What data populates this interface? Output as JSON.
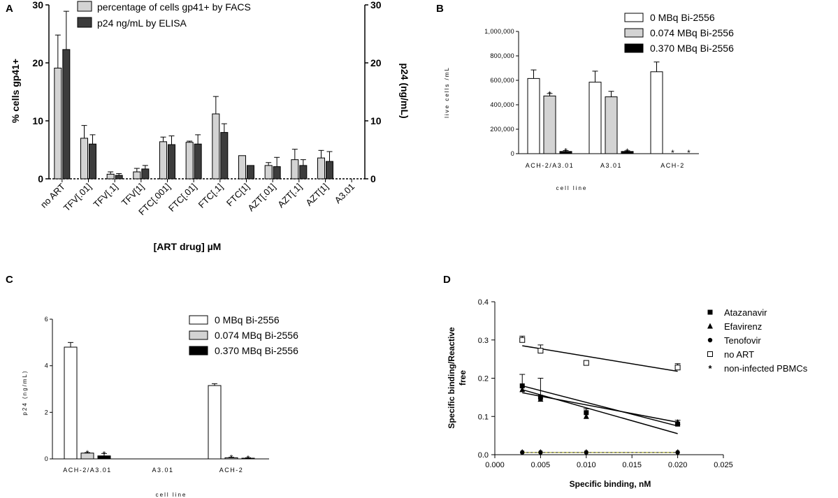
{
  "panels": {
    "A": {
      "letter": "A",
      "xlabel": "[ART drug] µM",
      "ylabel_left": "% cells gp41+",
      "ylabel_right": "p24 (ng/mL)"
    },
    "B": {
      "letter": "B",
      "xlabel": "cell line",
      "ylabel": "live cells /mL"
    },
    "C": {
      "letter": "C",
      "xlabel": "cell line",
      "ylabel": "p24 (ng/mL)"
    },
    "D": {
      "letter": "D",
      "xlabel": "Specific binding, nM",
      "ylabel_line1": "Specific binding/Reactive",
      "ylabel_line2": "free"
    }
  },
  "chart_data": [
    {
      "id": "A",
      "type": "bar",
      "categories": [
        "no ART",
        "TFV[.01]",
        "TFV[.1]",
        "TFV[1]",
        "FTC[.001]",
        "FTC[.01]",
        "FTC[.1]",
        "FTC[1]",
        "AZT[.01]",
        "AZT[.1]",
        "AZT[1]",
        "A3.01"
      ],
      "series": [
        {
          "name": "percentage of cells gp41+ by FACS",
          "color": "#d3d3d3",
          "axis": "left",
          "values": [
            19.1,
            7.0,
            0.8,
            1.2,
            6.4,
            6.3,
            11.2,
            4.0,
            2.3,
            3.3,
            3.6,
            0
          ],
          "errors": [
            5.7,
            2.2,
            0.4,
            0.6,
            0.8,
            0.2,
            3.0,
            0,
            0.5,
            1.8,
            1.3,
            0
          ]
        },
        {
          "name": "p24 ng/mL by ELISA",
          "color": "#3c3c3c",
          "axis": "right",
          "values": [
            22.3,
            6.0,
            0.6,
            1.7,
            5.9,
            6.0,
            8.0,
            2.3,
            2.1,
            2.3,
            3.0,
            0
          ],
          "errors": [
            6.6,
            1.6,
            0.3,
            0.6,
            1.5,
            1.6,
            1.5,
            0,
            1.6,
            1.0,
            1.7,
            0
          ]
        }
      ],
      "ylim_left": [
        0,
        30
      ],
      "ylim_right": [
        0,
        30
      ],
      "yticks_left": [
        "0",
        "10",
        "20",
        "30"
      ],
      "yticks_right": [
        "0",
        "10",
        "20",
        "30"
      ],
      "ylabel_left": "% cells gp41+",
      "ylabel_right": "p24 (ng/mL)",
      "xlabel": "[ART drug] µM",
      "legend_position": "top"
    },
    {
      "id": "B",
      "type": "bar",
      "categories": [
        "ACH-2/A3.01",
        "A3.01",
        "ACH-2"
      ],
      "series": [
        {
          "name": "0 MBq Bi-2556",
          "color": "#ffffff",
          "values": [
            615000,
            585000,
            670000
          ],
          "errors": [
            70000,
            90000,
            80000
          ]
        },
        {
          "name": "0.074 MBq Bi-2556",
          "color": "#d3d3d3",
          "values": [
            472000,
            465000,
            0
          ],
          "errors": [
            20000,
            45000,
            0
          ]
        },
        {
          "name": "0.370 MBq Bi-2556",
          "color": "#000000",
          "values": [
            18000,
            18000,
            0
          ],
          "errors": [
            8000,
            6000,
            0
          ]
        }
      ],
      "annotations": [
        {
          "category": "ACH-2/A3.01",
          "series": "0.074 MBq Bi-2556",
          "text": "*"
        },
        {
          "category": "ACH-2/A3.01",
          "series": "0.370 MBq Bi-2556",
          "text": "*"
        },
        {
          "category": "A3.01",
          "series": "0.370 MBq Bi-2556",
          "text": "*"
        },
        {
          "category": "ACH-2",
          "series": "0.074 MBq Bi-2556",
          "text": "*"
        },
        {
          "category": "ACH-2",
          "series": "0.370 MBq Bi-2556",
          "text": "*"
        }
      ],
      "ylim": [
        0,
        1000000
      ],
      "yticks": [
        "0",
        "200,000",
        "400,000",
        "600,000",
        "800,000",
        "1,000,000"
      ],
      "ylabel": "live cells /mL",
      "xlabel": "cell line",
      "legend_position": "top-right"
    },
    {
      "id": "C",
      "type": "bar",
      "categories": [
        "ACH-2/A3.01",
        "A3.01",
        "ACH-2"
      ],
      "series": [
        {
          "name": "0 MBq Bi-2556",
          "color": "#ffffff",
          "values": [
            4.8,
            0,
            3.15
          ],
          "errors": [
            0.2,
            0,
            0.08
          ]
        },
        {
          "name": "0.074 MBq Bi-2556",
          "color": "#d3d3d3",
          "values": [
            0.25,
            0,
            0.05
          ],
          "errors": [
            0.02,
            0,
            0.02
          ]
        },
        {
          "name": "0.370 MBq Bi-2556",
          "color": "#000000",
          "values": [
            0.13,
            0,
            0.03
          ],
          "errors": [
            0.1,
            0,
            0.02
          ]
        }
      ],
      "annotations": [
        {
          "category": "ACH-2/A3.01",
          "series": "0.074 MBq Bi-2556",
          "text": "*"
        },
        {
          "category": "ACH-2/A3.01",
          "series": "0.370 MBq Bi-2556",
          "text": "*"
        },
        {
          "category": "ACH-2",
          "series": "0.074 MBq Bi-2556",
          "text": "*"
        },
        {
          "category": "ACH-2",
          "series": "0.370 MBq Bi-2556",
          "text": "*"
        }
      ],
      "ylim": [
        0,
        6
      ],
      "yticks": [
        "0",
        "2",
        "4",
        "6"
      ],
      "ylabel": "p24 (ng/mL)",
      "xlabel": "cell line",
      "legend_position": "top-right"
    },
    {
      "id": "D",
      "type": "scatter",
      "series": [
        {
          "name": "Atazanavir",
          "marker": "square-filled",
          "points": [
            [
              0.003,
              0.18
            ],
            [
              0.005,
              0.15
            ],
            [
              0.01,
              0.11
            ],
            [
              0.02,
              0.08
            ]
          ],
          "errors": [
            0.03,
            0.05,
            0.01,
            0.01
          ],
          "fit": [
            [
              0.003,
              0.18
            ],
            [
              0.02,
              0.075
            ]
          ]
        },
        {
          "name": "Efavirenz",
          "marker": "triangle-filled",
          "points": [
            [
              0.003,
              0.17
            ],
            [
              0.005,
              0.145
            ],
            [
              0.01,
              0.1
            ],
            [
              0.02,
              0.085
            ]
          ],
          "errors": [
            0,
            0,
            0,
            0
          ],
          "fit": [
            [
              0.003,
              0.162
            ],
            [
              0.02,
              0.085
            ]
          ]
        },
        {
          "name": "Tenofovir",
          "marker": "circle-filled",
          "points": [
            [
              0.003,
              0.006
            ],
            [
              0.005,
              0.006
            ],
            [
              0.01,
              0.006
            ],
            [
              0.02,
              0.006
            ]
          ],
          "errors": [
            0,
            0,
            0,
            0
          ],
          "fit": [
            [
              0.003,
              0.006
            ],
            [
              0.02,
              0.006
            ]
          ]
        },
        {
          "name": "no ART",
          "marker": "square-open",
          "points": [
            [
              0.003,
              0.3
            ],
            [
              0.005,
              0.272
            ],
            [
              0.01,
              0.24
            ],
            [
              0.02,
              0.228
            ]
          ],
          "errors": [
            0.01,
            0.015,
            0,
            0.01
          ],
          "fit": [
            [
              0.003,
              0.285
            ],
            [
              0.02,
              0.218
            ]
          ]
        },
        {
          "name": "non-infected PBMCs",
          "marker": "asterisk",
          "points": [
            [
              0.003,
              0.006
            ],
            [
              0.005,
              0.006
            ],
            [
              0.01,
              0.006
            ],
            [
              0.02,
              0.006
            ]
          ],
          "errors": [
            0,
            0,
            0,
            0
          ],
          "fit": [
            [
              0.003,
              0.006
            ],
            [
              0.02,
              0.006
            ]
          ]
        }
      ],
      "extra_fit": [
        [
          0.003,
          0.17
        ],
        [
          0.02,
          0.055
        ]
      ],
      "xlim": [
        0,
        0.025
      ],
      "ylim": [
        0,
        0.4
      ],
      "xticks": [
        "0.000",
        "0.005",
        "0.010",
        "0.015",
        "0.020",
        "0.025"
      ],
      "yticks": [
        "0.0",
        "0.1",
        "0.2",
        "0.3",
        "0.4"
      ],
      "xlabel": "Specific binding, nM",
      "ylabel": "Specific binding/Reactive free",
      "legend_position": "top-right"
    }
  ]
}
